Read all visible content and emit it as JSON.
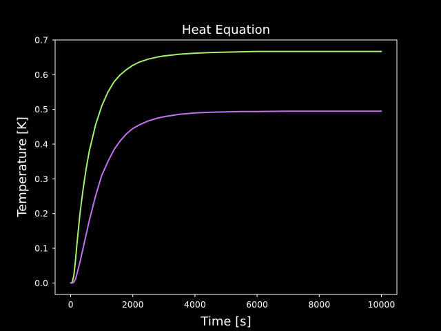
{
  "chart_data": {
    "type": "line",
    "title": "Heat Equation",
    "xlabel": "Time [s]",
    "ylabel": "Temperature [K]",
    "xlim": [
      -500,
      10500
    ],
    "ylim": [
      -0.033,
      0.7
    ],
    "xticks": [
      0,
      2000,
      4000,
      6000,
      8000,
      10000
    ],
    "yticks": [
      0.0,
      0.1,
      0.2,
      0.3,
      0.4,
      0.5,
      0.6,
      0.7
    ],
    "xtick_labels": [
      "0",
      "2000",
      "4000",
      "6000",
      "8000",
      "10000"
    ],
    "ytick_labels": [
      "0.0",
      "0.1",
      "0.2",
      "0.3",
      "0.4",
      "0.5",
      "0.6",
      "0.7"
    ],
    "grid": false,
    "legend": "none",
    "background_color": "#000000",
    "axes_color": "#ffffff",
    "series": [
      {
        "color": "#a6f070",
        "x": [
          0,
          50,
          100,
          150,
          200,
          300,
          400,
          500,
          600,
          800,
          1000,
          1200,
          1400,
          1600,
          1800,
          2000,
          2200,
          2500,
          2800,
          3000,
          3500,
          4000,
          4500,
          5000,
          5500,
          6000,
          7000,
          8000,
          9000,
          10000
        ],
        "values": [
          0.0,
          0.002,
          0.02,
          0.06,
          0.11,
          0.2,
          0.27,
          0.33,
          0.38,
          0.455,
          0.51,
          0.55,
          0.58,
          0.6,
          0.615,
          0.627,
          0.636,
          0.645,
          0.651,
          0.654,
          0.659,
          0.662,
          0.664,
          0.665,
          0.666,
          0.667,
          0.667,
          0.667,
          0.667,
          0.667
        ]
      },
      {
        "color": "#c073f0",
        "x": [
          0,
          50,
          100,
          150,
          200,
          300,
          400,
          500,
          600,
          800,
          1000,
          1200,
          1400,
          1600,
          1800,
          2000,
          2200,
          2500,
          2800,
          3000,
          3500,
          4000,
          4500,
          5000,
          5500,
          6000,
          7000,
          8000,
          9000,
          10000
        ],
        "values": [
          0.0,
          0.0,
          0.002,
          0.01,
          0.025,
          0.06,
          0.1,
          0.14,
          0.18,
          0.25,
          0.31,
          0.35,
          0.385,
          0.41,
          0.43,
          0.445,
          0.455,
          0.467,
          0.475,
          0.479,
          0.486,
          0.49,
          0.492,
          0.493,
          0.494,
          0.494,
          0.495,
          0.495,
          0.495,
          0.495
        ]
      }
    ]
  }
}
